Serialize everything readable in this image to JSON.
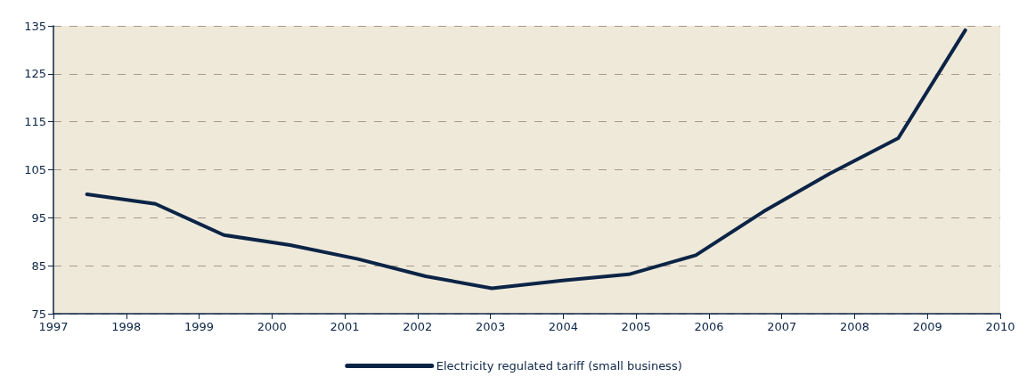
{
  "chart_data": {
    "type": "line",
    "x": [
      1997.46,
      1998.4,
      1999.34,
      2000.25,
      2001.18,
      2002.11,
      2003.02,
      2003.99,
      2004.9,
      2005.82,
      2006.75,
      2007.66,
      2008.6,
      2009.52
    ],
    "series": [
      {
        "name": "Electricity regulated tariff (small business)",
        "color": "#0b2446",
        "values": [
          99.9,
          97.9,
          91.4,
          89.3,
          86.4,
          82.8,
          80.3,
          81.9,
          83.2,
          87.2,
          96.3,
          104.2,
          111.6,
          134.1
        ]
      }
    ],
    "xlim": [
      1997,
      2010
    ],
    "xticks": [
      1997,
      1998,
      1999,
      2000,
      2001,
      2002,
      2003,
      2004,
      2005,
      2006,
      2007,
      2008,
      2009,
      2010
    ],
    "ylim": [
      75,
      135
    ],
    "yticks": [
      75,
      85,
      95,
      105,
      115,
      125,
      135
    ],
    "grid": "y",
    "legend": "bottom",
    "line_style": "solid",
    "marker": "none"
  }
}
